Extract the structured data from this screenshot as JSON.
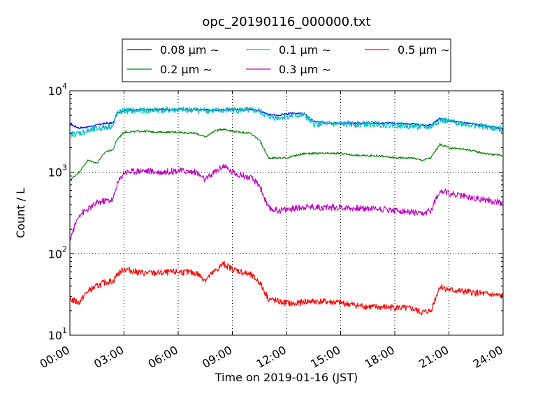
{
  "chart_data": {
    "type": "line",
    "title": "opc_20190116_000000.txt",
    "xlabel": "Time on 2019-01-16 (JST)",
    "ylabel": "Count / L",
    "x_unit": "hours",
    "xlim": [
      0,
      24
    ],
    "ylim": [
      10,
      10000
    ],
    "y_scale": "log",
    "grid": true,
    "legend_position": "top-center",
    "x_ticks": [
      0,
      3,
      6,
      9,
      12,
      15,
      18,
      21,
      24
    ],
    "x_tick_labels": [
      "00:00",
      "03:00",
      "06:00",
      "09:00",
      "12:00",
      "15:00",
      "18:00",
      "21:00",
      "24:00"
    ],
    "y_ticks": [
      10,
      100,
      1000,
      10000
    ],
    "y_tick_labels": [
      {
        "base": "10",
        "exp": "1"
      },
      {
        "base": "10",
        "exp": "2"
      },
      {
        "base": "10",
        "exp": "3"
      },
      {
        "base": "10",
        "exp": "4"
      }
    ],
    "series": [
      {
        "name": "0.08 μm ∼",
        "color": "#0000ff",
        "x": [
          0,
          0.5,
          1,
          1.5,
          2,
          2.4,
          2.6,
          3,
          4,
          5,
          6,
          7,
          8,
          9,
          10,
          10.5,
          11,
          11.5,
          12,
          12.5,
          13,
          13.5,
          14,
          15,
          16,
          17,
          18,
          19,
          19.5,
          20,
          20.5,
          21,
          22,
          23,
          24
        ],
        "values": [
          3900,
          3500,
          3600,
          3800,
          4000,
          4000,
          5300,
          5800,
          5800,
          5900,
          5900,
          5900,
          5800,
          5900,
          5900,
          5700,
          5100,
          5000,
          5200,
          5300,
          5200,
          4200,
          4100,
          4000,
          4000,
          4000,
          4000,
          3900,
          3800,
          3800,
          4600,
          4300,
          4000,
          3700,
          3400
        ]
      },
      {
        "name": "0.2 μm ∼",
        "color": "#008000",
        "x": [
          0,
          0.5,
          1,
          1.5,
          2,
          2.4,
          2.6,
          3,
          4,
          5,
          6,
          7,
          7.5,
          8,
          8.5,
          9,
          10,
          10.5,
          11,
          11.5,
          12,
          12.5,
          13,
          14,
          15,
          16,
          17,
          18,
          19,
          19.5,
          20,
          20.5,
          21,
          22,
          23,
          24
        ],
        "values": [
          800,
          1000,
          1400,
          1300,
          1800,
          1900,
          2500,
          3100,
          3200,
          3100,
          3100,
          3000,
          2700,
          3200,
          3400,
          3200,
          3000,
          2500,
          1500,
          1500,
          1500,
          1600,
          1700,
          1700,
          1700,
          1600,
          1600,
          1500,
          1500,
          1400,
          1500,
          2200,
          2000,
          1900,
          1700,
          1600
        ]
      },
      {
        "name": "0.1 μm ∼",
        "color": "#00bfbf",
        "x": [
          0,
          0.5,
          1,
          1.5,
          2,
          2.4,
          2.6,
          3,
          4,
          5,
          6,
          7,
          8,
          9,
          10,
          10.5,
          11,
          11.5,
          12,
          12.5,
          13,
          13.5,
          14,
          15,
          16,
          17,
          18,
          19,
          19.5,
          20,
          20.5,
          21,
          22,
          23,
          24
        ],
        "values": [
          2900,
          3000,
          3200,
          3400,
          3600,
          3700,
          5200,
          5700,
          5700,
          5800,
          5800,
          5800,
          5700,
          5800,
          5800,
          5600,
          4800,
          4700,
          4800,
          5000,
          5000,
          3900,
          3900,
          3900,
          3900,
          3900,
          3800,
          3700,
          3600,
          3600,
          4400,
          4200,
          3900,
          3600,
          3300
        ]
      },
      {
        "name": "0.3 μm ∼",
        "color": "#bf00bf",
        "x": [
          0,
          0.5,
          1,
          1.5,
          2,
          2.4,
          2.6,
          3,
          4,
          5,
          6,
          7,
          7.5,
          8,
          8.5,
          9,
          10,
          10.5,
          11,
          11.5,
          12,
          12.5,
          13,
          14,
          15,
          16,
          17,
          18,
          19,
          19.5,
          20,
          20.5,
          21,
          22,
          23,
          24
        ],
        "values": [
          150,
          300,
          350,
          420,
          450,
          460,
          700,
          1000,
          1050,
          1000,
          1050,
          1000,
          800,
          1000,
          1200,
          1000,
          850,
          700,
          360,
          340,
          350,
          360,
          380,
          370,
          370,
          360,
          360,
          340,
          320,
          300,
          340,
          600,
          550,
          500,
          460,
          420
        ]
      },
      {
        "name": "0.5 μm ∼",
        "color": "#ff0000",
        "x": [
          0,
          0.5,
          1,
          1.5,
          2,
          2.4,
          2.6,
          3,
          4,
          5,
          6,
          7,
          7.5,
          8,
          8.5,
          9,
          10,
          10.5,
          11,
          11.5,
          12,
          12.5,
          13,
          14,
          15,
          16,
          17,
          18,
          19,
          19.5,
          20,
          20.5,
          21,
          22,
          23,
          24
        ],
        "values": [
          28,
          25,
          35,
          40,
          45,
          46,
          55,
          65,
          58,
          58,
          60,
          58,
          48,
          60,
          75,
          65,
          55,
          45,
          28,
          26,
          25,
          24,
          26,
          26,
          25,
          23,
          22,
          22,
          21,
          19,
          20,
          40,
          36,
          34,
          32,
          30
        ]
      }
    ]
  }
}
